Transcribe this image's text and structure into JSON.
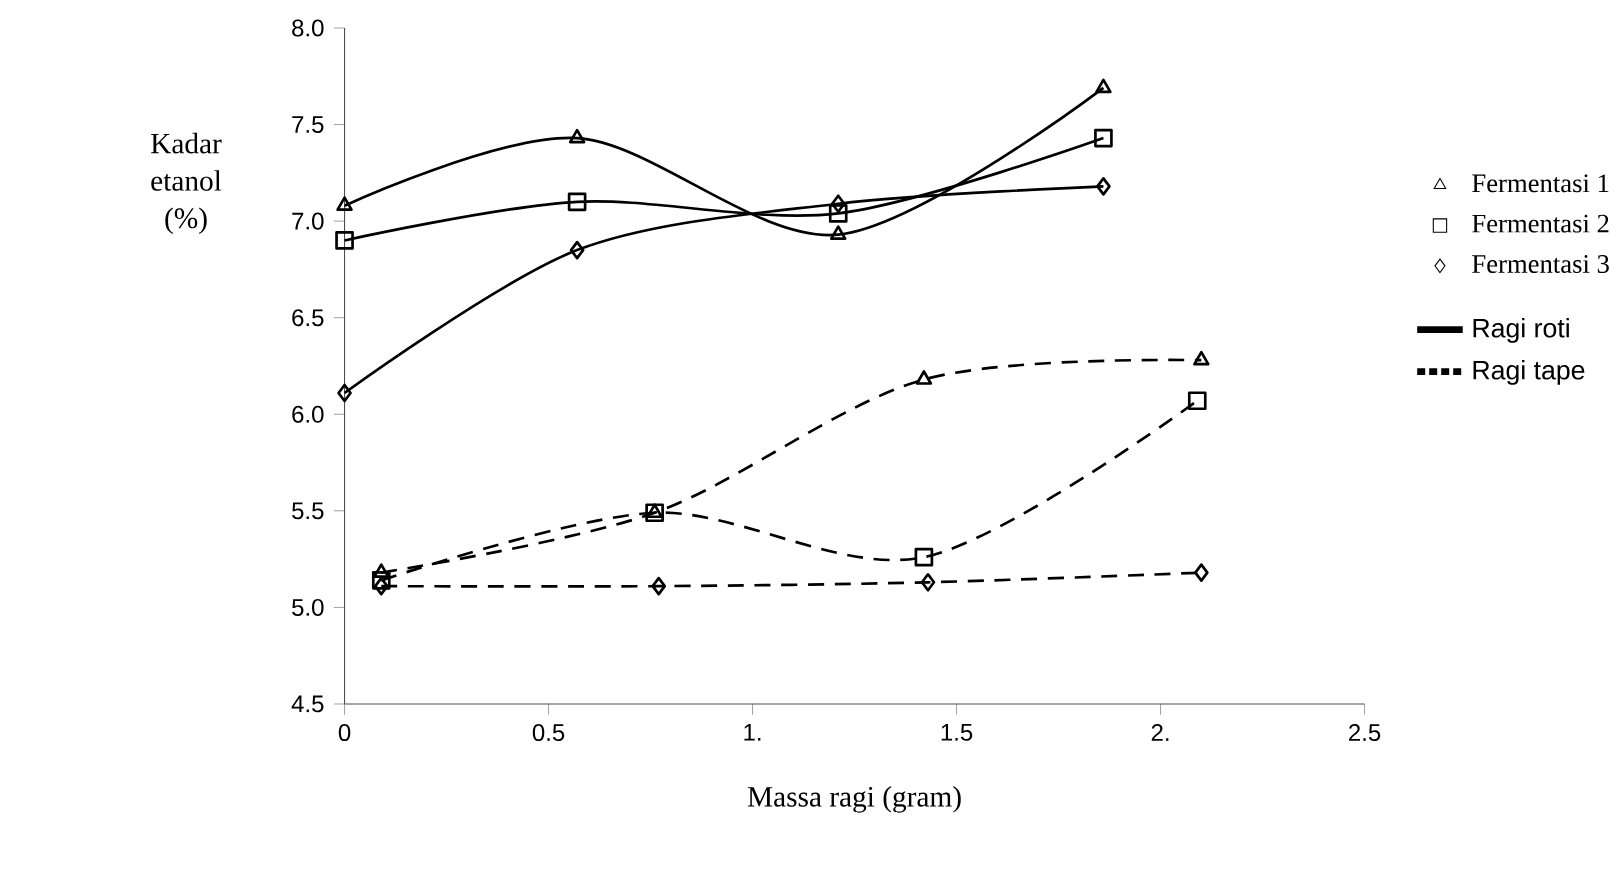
{
  "chart_data": {
    "type": "line",
    "xlabel": "Massa ragi (gram)",
    "ylabel": "Kadar etanol (%)",
    "xlim": [
      0,
      2.5
    ],
    "ylim": [
      4.5,
      8.0
    ],
    "xticks": [
      0,
      0.5,
      {
        "value": 1,
        "label": "1."
      },
      1.5,
      {
        "value": 2,
        "label": "2."
      },
      2.5
    ],
    "yticks": [
      4.5,
      {
        "value": 5,
        "label": "5.0"
      },
      5.5,
      {
        "value": 6,
        "label": "6.0"
      },
      6.5,
      {
        "value": 7,
        "label": "7.0"
      },
      7.5,
      {
        "value": 8,
        "label": "8.0"
      }
    ],
    "grid": false,
    "legend": "right",
    "annotations": [
      "Ragi roti",
      "Ragi tape"
    ],
    "series": [
      {
        "name": "Fermentasi 1",
        "color": "#000000",
        "marker": "triangle",
        "line_style": "solid",
        "x": [
          0,
          0.57,
          1.21,
          1.86
        ],
        "values": [
          7.08,
          7.43,
          6.93,
          7.69
        ]
      },
      {
        "name": "Fermentasi 2",
        "color": "#000000",
        "marker": "square",
        "line_style": "solid",
        "x": [
          0,
          0.57,
          1.21,
          1.86
        ],
        "values": [
          6.9,
          7.1,
          7.04,
          7.43
        ]
      },
      {
        "name": "Fermentasi 3",
        "color": "#000000",
        "marker": "diamond",
        "line_style": "solid",
        "x": [
          0,
          0.57,
          1.21,
          1.86
        ],
        "values": [
          6.11,
          6.85,
          7.09,
          7.18
        ]
      },
      {
        "color": "#000000",
        "marker": "triangle",
        "line_style": "dashed",
        "x": [
          0.09,
          0.76,
          1.42,
          2.1
        ],
        "values": [
          5.18,
          5.49,
          6.18,
          6.28
        ]
      },
      {
        "color": "#000000",
        "marker": "square",
        "line_style": "dashed",
        "x": [
          0.09,
          0.76,
          1.42,
          2.09
        ],
        "values": [
          5.14,
          5.49,
          5.26,
          6.07
        ]
      },
      {
        "color": "#000000",
        "marker": "diamond",
        "line_style": "dashed",
        "x": [
          0.09,
          0.77,
          1.43,
          2.1
        ],
        "values": [
          5.11,
          5.11,
          5.13,
          5.18
        ]
      }
    ]
  }
}
